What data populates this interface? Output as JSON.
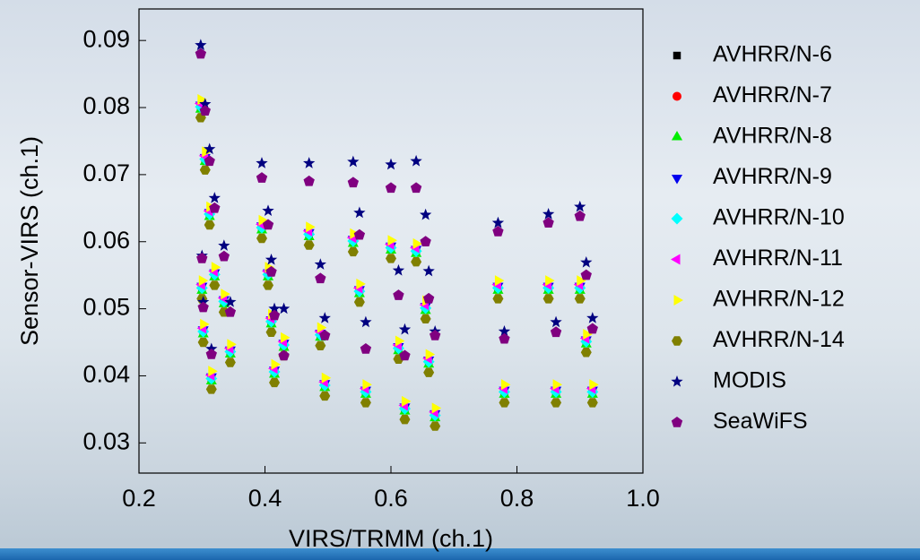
{
  "chart_data": {
    "type": "scatter",
    "xlabel": "VIRS/TRMM (ch.1)",
    "ylabel": "Sensor-VIRS (ch.1)",
    "xlim": [
      0.2,
      1.0
    ],
    "ylim": [
      0.0255,
      0.0947
    ],
    "xticks": [
      0.2,
      0.4,
      0.6,
      0.8,
      {
        "value": 1,
        "label": "1.0"
      }
    ],
    "yticks": [
      0.03,
      0.04,
      0.05,
      0.06,
      0.07,
      0.08,
      0.09
    ],
    "legend": "right",
    "x": [
      0.298,
      0.305,
      0.312,
      0.32,
      0.3,
      0.302,
      0.315,
      0.335,
      0.345,
      0.395,
      0.405,
      0.41,
      0.415,
      0.43,
      0.47,
      0.488,
      0.495,
      0.54,
      0.55,
      0.56,
      0.6,
      0.612,
      0.622,
      0.64,
      0.655,
      0.66,
      0.67,
      0.77,
      0.78,
      0.85,
      0.862,
      0.9,
      0.91,
      0.92
    ],
    "series": [
      {
        "name": "AVHRR/N-6",
        "color": "#000000",
        "marker": "square",
        "values": [
          0.08,
          0.0722,
          0.064,
          0.055,
          0.053,
          0.0465,
          0.0395,
          0.051,
          0.0435,
          0.062,
          0.055,
          0.048,
          0.0405,
          0.0445,
          0.061,
          0.046,
          0.0385,
          0.06,
          0.0525,
          0.0375,
          0.059,
          0.044,
          0.035,
          0.0585,
          0.05,
          0.042,
          0.034,
          0.053,
          0.0375,
          0.053,
          0.0375,
          0.053,
          0.045,
          0.0375
        ]
      },
      {
        "name": "AVHRR/N-7",
        "color": "#ff0000",
        "marker": "circle",
        "values": [
          0.0802,
          0.0724,
          0.0642,
          0.0552,
          0.0532,
          0.0467,
          0.0397,
          0.0512,
          0.0437,
          0.0622,
          0.0552,
          0.0482,
          0.0407,
          0.0447,
          0.0612,
          0.0462,
          0.0387,
          0.0602,
          0.0527,
          0.0377,
          0.0592,
          0.0442,
          0.0352,
          0.0587,
          0.0502,
          0.0422,
          0.0342,
          0.0532,
          0.0377,
          0.0532,
          0.0377,
          0.0532,
          0.0452,
          0.0377
        ]
      },
      {
        "name": "AVHRR/N-8",
        "color": "#00ee00",
        "marker": "triangle-up",
        "values": [
          0.0797,
          0.0719,
          0.0637,
          0.0547,
          0.0527,
          0.0462,
          0.0392,
          0.0507,
          0.0432,
          0.0617,
          0.0547,
          0.0477,
          0.0402,
          0.0442,
          0.0607,
          0.0457,
          0.0382,
          0.0597,
          0.0522,
          0.0372,
          0.0587,
          0.0437,
          0.0347,
          0.0582,
          0.0497,
          0.0417,
          0.0337,
          0.0527,
          0.0372,
          0.0527,
          0.0372,
          0.0527,
          0.0447,
          0.0372
        ]
      },
      {
        "name": "AVHRR/N-9",
        "color": "#0000ee",
        "marker": "triangle-down",
        "values": [
          0.0804,
          0.0726,
          0.0644,
          0.0554,
          0.0534,
          0.0469,
          0.0399,
          0.0514,
          0.0439,
          0.0624,
          0.0554,
          0.0484,
          0.0409,
          0.0449,
          0.0614,
          0.0464,
          0.0389,
          0.0604,
          0.0529,
          0.0379,
          0.0594,
          0.0444,
          0.0354,
          0.0589,
          0.0504,
          0.0424,
          0.0344,
          0.0534,
          0.0379,
          0.0534,
          0.0379,
          0.0534,
          0.0454,
          0.0379
        ]
      },
      {
        "name": "AVHRR/N-10",
        "color": "#00ffff",
        "marker": "diamond",
        "values": [
          0.0801,
          0.0723,
          0.0641,
          0.0551,
          0.0531,
          0.0466,
          0.0396,
          0.0511,
          0.0436,
          0.0621,
          0.0551,
          0.0481,
          0.0406,
          0.0446,
          0.0611,
          0.0461,
          0.0386,
          0.0601,
          0.0526,
          0.0376,
          0.0591,
          0.0441,
          0.0351,
          0.0586,
          0.0501,
          0.0421,
          0.0341,
          0.0531,
          0.0376,
          0.0531,
          0.0376,
          0.0531,
          0.0451,
          0.0376
        ]
      },
      {
        "name": "AVHRR/N-11",
        "color": "#ff00ff",
        "marker": "triangle-left",
        "values": [
          0.0806,
          0.0728,
          0.0646,
          0.0556,
          0.0536,
          0.0471,
          0.0401,
          0.0516,
          0.0441,
          0.0626,
          0.0556,
          0.0486,
          0.0411,
          0.0451,
          0.0616,
          0.0466,
          0.0391,
          0.0606,
          0.0531,
          0.0381,
          0.0596,
          0.0446,
          0.0356,
          0.0591,
          0.0506,
          0.0426,
          0.0346,
          0.0536,
          0.0381,
          0.0536,
          0.0381,
          0.0536,
          0.0456,
          0.0381
        ]
      },
      {
        "name": "AVHRR/N-12",
        "color": "#ffff00",
        "marker": "triangle-right",
        "values": [
          0.0812,
          0.0734,
          0.0652,
          0.0562,
          0.0542,
          0.0477,
          0.0407,
          0.0522,
          0.0447,
          0.0632,
          0.0562,
          0.0492,
          0.0417,
          0.0457,
          0.0622,
          0.0472,
          0.0397,
          0.0612,
          0.0537,
          0.0387,
          0.0602,
          0.0452,
          0.0362,
          0.0597,
          0.0512,
          0.0432,
          0.0352,
          0.0542,
          0.0387,
          0.0542,
          0.0387,
          0.0542,
          0.0462,
          0.0387
        ]
      },
      {
        "name": "AVHRR/N-14",
        "color": "#808000",
        "marker": "hexagon",
        "values": [
          0.0785,
          0.0707,
          0.0625,
          0.0535,
          0.0515,
          0.045,
          0.038,
          0.0495,
          0.042,
          0.0605,
          0.0535,
          0.0465,
          0.039,
          0.043,
          0.0595,
          0.0445,
          0.037,
          0.0585,
          0.051,
          0.036,
          0.0575,
          0.0425,
          0.0335,
          0.057,
          0.0485,
          0.0405,
          0.0325,
          0.0515,
          0.036,
          0.0515,
          0.036,
          0.0515,
          0.0435,
          0.036
        ]
      },
      {
        "name": "MODIS",
        "color": "#000080",
        "marker": "star",
        "values": [
          0.0893,
          0.0805,
          0.0738,
          0.0665,
          0.0579,
          0.051,
          0.044,
          0.0594,
          0.051,
          0.0717,
          0.0646,
          0.0573,
          0.05,
          0.05,
          0.0717,
          0.0566,
          0.0486,
          0.0719,
          0.0643,
          0.048,
          0.0715,
          0.0557,
          0.0469,
          0.072,
          0.064,
          0.0556,
          0.0466,
          0.0628,
          0.0466,
          0.0641,
          0.048,
          0.0652,
          0.0569,
          0.0486
        ]
      },
      {
        "name": "SeaWiFS",
        "color": "#800080",
        "marker": "pentagon",
        "values": [
          0.088,
          0.0795,
          0.072,
          0.065,
          0.0575,
          0.0502,
          0.0432,
          0.0578,
          0.0495,
          0.0695,
          0.0625,
          0.0555,
          0.049,
          0.043,
          0.069,
          0.0545,
          0.046,
          0.0688,
          0.061,
          0.044,
          0.068,
          0.052,
          0.043,
          0.068,
          0.06,
          0.0515,
          0.046,
          0.0615,
          0.0455,
          0.0628,
          0.0465,
          0.0638,
          0.055,
          0.047
        ]
      }
    ]
  }
}
